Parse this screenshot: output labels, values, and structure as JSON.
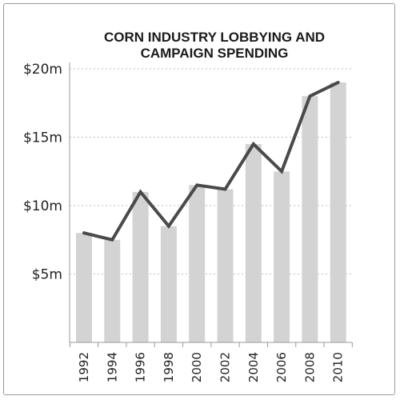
{
  "chart_data": {
    "type": "bar",
    "title_lines": [
      "CORN INDUSTRY LOBBYING AND",
      "CAMPAIGN SPENDING"
    ],
    "categories": [
      "1992",
      "1994",
      "1996",
      "1998",
      "2000",
      "2002",
      "2004",
      "2006",
      "2008",
      "2010"
    ],
    "series": [
      {
        "type": "bar",
        "values": [
          8.0,
          7.5,
          11.0,
          8.5,
          11.5,
          11.2,
          14.5,
          12.5,
          18.0,
          19.0
        ]
      },
      {
        "type": "line",
        "values": [
          8.0,
          7.5,
          11.0,
          8.5,
          11.5,
          11.2,
          14.5,
          12.5,
          18.0,
          19.0
        ]
      }
    ],
    "ylim": [
      0,
      20
    ],
    "yticks": [
      {
        "value": 5,
        "label": "$5m"
      },
      {
        "value": 10,
        "label": "$10m"
      },
      {
        "value": 15,
        "label": "$15m"
      },
      {
        "value": 20,
        "label": "$20m"
      }
    ],
    "grid": "horizontal-dotted",
    "colors": {
      "bar": "#d3d3d3",
      "line": "#4a4a4a",
      "grid": "#bdbdbd",
      "axis": "#9a9a9a"
    }
  }
}
